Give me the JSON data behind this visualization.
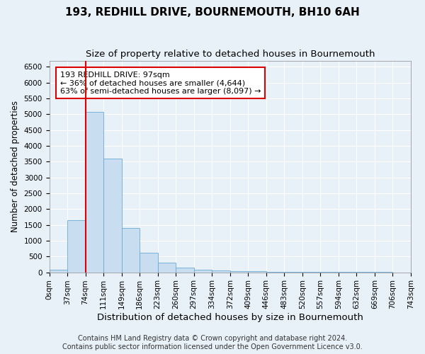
{
  "title": "193, REDHILL DRIVE, BOURNEMOUTH, BH10 6AH",
  "subtitle": "Size of property relative to detached houses in Bournemouth",
  "xlabel": "Distribution of detached houses by size in Bournemouth",
  "ylabel": "Number of detached properties",
  "bar_color": "#c8ddef",
  "bar_edge_color": "#6aaad4",
  "bar_values": [
    70,
    1650,
    5080,
    3590,
    1410,
    620,
    300,
    140,
    85,
    55,
    40,
    30,
    20,
    15,
    10,
    8,
    5,
    4,
    3,
    2
  ],
  "bin_labels": [
    "0sqm",
    "37sqm",
    "74sqm",
    "111sqm",
    "149sqm",
    "186sqm",
    "223sqm",
    "260sqm",
    "297sqm",
    "334sqm",
    "372sqm",
    "409sqm",
    "446sqm",
    "483sqm",
    "520sqm",
    "557sqm",
    "594sqm",
    "632sqm",
    "669sqm",
    "706sqm",
    "743sqm"
  ],
  "ylim": [
    0,
    6700
  ],
  "yticks": [
    0,
    500,
    1000,
    1500,
    2000,
    2500,
    3000,
    3500,
    4000,
    4500,
    5000,
    5500,
    6000,
    6500
  ],
  "vline_x_bin": 2,
  "vline_color": "#dd0000",
  "annotation_text": "193 REDHILL DRIVE: 97sqm\n← 36% of detached houses are smaller (4,644)\n63% of semi-detached houses are larger (8,097) →",
  "annotation_box_color": "white",
  "annotation_box_edge_color": "#dd0000",
  "footer_line1": "Contains HM Land Registry data © Crown copyright and database right 2024.",
  "footer_line2": "Contains public sector information licensed under the Open Government Licence v3.0.",
  "background_color": "#e8f0f8",
  "axes_background": "#e8f0f8",
  "grid_color": "white",
  "title_fontsize": 11,
  "subtitle_fontsize": 9.5,
  "xlabel_fontsize": 9.5,
  "ylabel_fontsize": 8.5,
  "tick_fontsize": 7.5,
  "annotation_fontsize": 8,
  "footer_fontsize": 7
}
